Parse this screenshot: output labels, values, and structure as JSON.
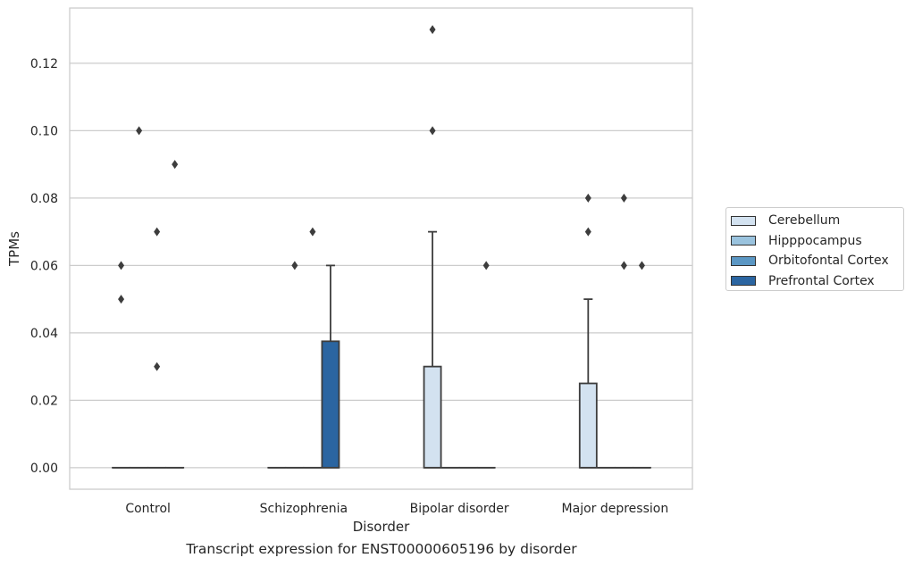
{
  "chart_data": {
    "type": "box",
    "xlabel": "Disorder",
    "ylabel": "TPMs",
    "caption": "Transcript expression for ENST00000605196 by disorder",
    "ylim": [
      -0.0064,
      0.1364
    ],
    "yticks": [
      "0.00",
      "0.02",
      "0.04",
      "0.06",
      "0.08",
      "0.10",
      "0.12"
    ],
    "categories": [
      "Control",
      "Schizophrenia",
      "Bipolar disorder",
      "Major depression"
    ],
    "grid": "horizontal",
    "legend_position": "right",
    "series": [
      {
        "name": "Cerebellum",
        "color": "#d3e2f0",
        "boxes": [
          {
            "q1": 0,
            "median": 0,
            "q3": 0,
            "whisker_low": 0,
            "whisker_high": 0,
            "outliers": [
              0.05,
              0.06
            ]
          },
          {
            "q1": 0,
            "median": 0,
            "q3": 0,
            "whisker_low": 0,
            "whisker_high": 0,
            "outliers": []
          },
          {
            "q1": 0,
            "median": 0,
            "q3": 0.03,
            "whisker_low": 0,
            "whisker_high": 0.07,
            "outliers": [
              0.1,
              0.13
            ]
          },
          {
            "q1": 0,
            "median": 0,
            "q3": 0.025,
            "whisker_low": 0,
            "whisker_high": 0.05,
            "outliers": [
              0.07,
              0.08
            ]
          }
        ]
      },
      {
        "name": "Hipppocampus",
        "color": "#9ac3de",
        "boxes": [
          {
            "q1": 0,
            "median": 0,
            "q3": 0,
            "whisker_low": 0,
            "whisker_high": 0,
            "outliers": [
              0.1
            ]
          },
          {
            "q1": 0,
            "median": 0,
            "q3": 0,
            "whisker_low": 0,
            "whisker_high": 0,
            "outliers": [
              0.06
            ]
          },
          {
            "q1": 0,
            "median": 0,
            "q3": 0,
            "whisker_low": 0,
            "whisker_high": 0,
            "outliers": []
          },
          {
            "q1": 0,
            "median": 0,
            "q3": 0,
            "whisker_low": 0,
            "whisker_high": 0,
            "outliers": []
          }
        ]
      },
      {
        "name": "Orbitofontal Cortex",
        "color": "#5b97c4",
        "boxes": [
          {
            "q1": 0,
            "median": 0,
            "q3": 0,
            "whisker_low": 0,
            "whisker_high": 0,
            "outliers": [
              0.03,
              0.07
            ]
          },
          {
            "q1": 0,
            "median": 0,
            "q3": 0,
            "whisker_low": 0,
            "whisker_high": 0,
            "outliers": [
              0.07
            ]
          },
          {
            "q1": 0,
            "median": 0,
            "q3": 0,
            "whisker_low": 0,
            "whisker_high": 0,
            "outliers": []
          },
          {
            "q1": 0,
            "median": 0,
            "q3": 0,
            "whisker_low": 0,
            "whisker_high": 0,
            "outliers": [
              0.08,
              0.06
            ]
          }
        ]
      },
      {
        "name": "Prefrontal Cortex",
        "color": "#2b65a1",
        "boxes": [
          {
            "q1": 0,
            "median": 0,
            "q3": 0,
            "whisker_low": 0,
            "whisker_high": 0,
            "outliers": [
              0.09
            ]
          },
          {
            "q1": 0,
            "median": 0,
            "q3": 0.0375,
            "whisker_low": 0,
            "whisker_high": 0.06,
            "outliers": []
          },
          {
            "q1": 0,
            "median": 0,
            "q3": 0,
            "whisker_low": 0,
            "whisker_high": 0,
            "outliers": [
              0.06
            ]
          },
          {
            "q1": 0,
            "median": 0,
            "q3": 0,
            "whisker_low": 0,
            "whisker_high": 0,
            "outliers": [
              0.06
            ]
          }
        ]
      }
    ]
  }
}
